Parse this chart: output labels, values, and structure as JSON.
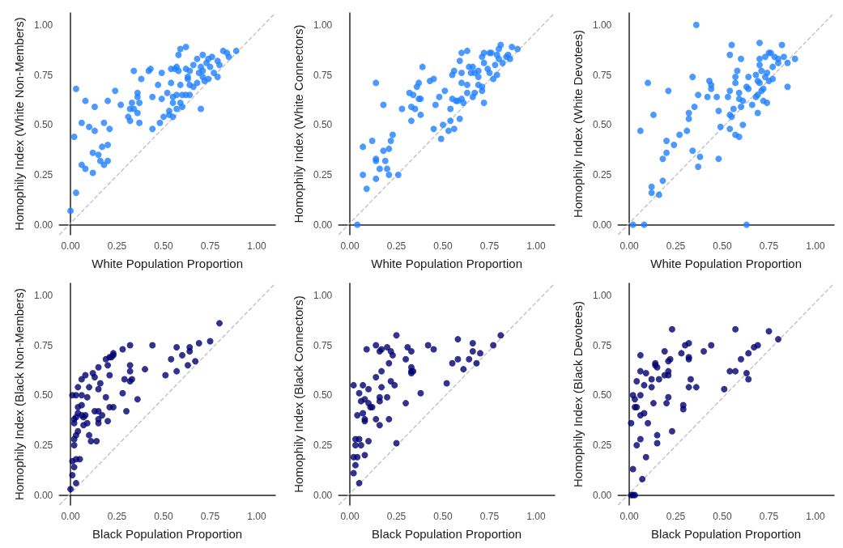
{
  "chart_data": [
    {
      "type": "scatter",
      "xlabel": "White Population Proportion",
      "ylabel": "Homophily Index (White Non-Members)",
      "grid": false,
      "xlim": [
        -0.06,
        1.1
      ],
      "ylim": [
        -0.05,
        1.06
      ],
      "xticks": [
        {
          "value": 0,
          "label": "0.00"
        },
        {
          "value": 0.25,
          "label": "0.25"
        },
        {
          "value": 0.5,
          "label": "0.50"
        },
        {
          "value": 0.75,
          "label": "0.75"
        },
        {
          "value": 1,
          "label": "1.00"
        }
      ],
      "yticks": [
        {
          "value": 0,
          "label": "0.00"
        },
        {
          "value": 0.25,
          "label": "0.25"
        },
        {
          "value": 0.5,
          "label": "0.50"
        },
        {
          "value": 0.75,
          "label": "0.75"
        },
        {
          "value": 1,
          "label": "1.00"
        }
      ],
      "series": [
        {
          "color": "#1f7fff",
          "marker": "circle",
          "x": [
            0.0,
            0.03,
            0.02,
            0.03,
            0.06,
            0.08,
            0.06,
            0.08,
            0.1,
            0.13,
            0.12,
            0.12,
            0.15,
            0.17,
            0.16,
            0.18,
            0.2,
            0.2,
            0.18,
            0.21,
            0.2,
            0.13,
            0.24,
            0.27,
            0.31,
            0.32,
            0.32,
            0.34,
            0.36,
            0.33,
            0.37,
            0.36,
            0.36,
            0.37,
            0.34,
            0.38,
            0.42,
            0.43,
            0.44,
            0.44,
            0.47,
            0.49,
            0.48,
            0.5,
            0.49,
            0.52,
            0.53,
            0.53,
            0.55,
            0.55,
            0.54,
            0.54,
            0.56,
            0.57,
            0.58,
            0.58,
            0.59,
            0.62,
            0.55,
            0.57,
            0.59,
            0.59,
            0.57,
            0.6,
            0.6,
            0.62,
            0.64,
            0.62,
            0.64,
            0.63,
            0.63,
            0.64,
            0.66,
            0.66,
            0.68,
            0.68,
            0.71,
            0.69,
            0.7,
            0.7,
            0.71,
            0.72,
            0.74,
            0.74,
            0.76,
            0.75,
            0.77,
            0.79,
            0.79,
            0.8,
            0.82,
            0.84,
            0.85,
            0.89,
            0.71,
            0.73
          ],
          "values": [
            0.07,
            0.16,
            0.44,
            0.68,
            0.3,
            0.28,
            0.51,
            0.62,
            0.49,
            0.47,
            0.36,
            0.26,
            0.35,
            0.39,
            0.32,
            0.3,
            0.32,
            0.4,
            0.51,
            0.48,
            0.62,
            0.59,
            0.67,
            0.6,
            0.54,
            0.52,
            0.58,
            0.58,
            0.56,
            0.61,
            0.61,
            0.64,
            0.66,
            0.51,
            0.77,
            0.73,
            0.77,
            0.78,
            0.48,
            0.64,
            0.7,
            0.63,
            0.51,
            0.54,
            0.76,
            0.66,
            0.57,
            0.55,
            0.54,
            0.61,
            0.71,
            0.78,
            0.78,
            0.79,
            0.77,
            0.85,
            0.88,
            0.89,
            0.64,
            0.65,
            0.7,
            0.61,
            0.58,
            0.59,
            0.65,
            0.65,
            0.65,
            0.78,
            0.77,
            0.73,
            0.74,
            0.7,
            0.69,
            0.8,
            0.71,
            0.83,
            0.85,
            0.76,
            0.79,
            0.58,
            0.74,
            0.72,
            0.73,
            0.83,
            0.84,
            0.79,
            0.76,
            0.74,
            0.82,
            0.8,
            0.87,
            0.86,
            0.84,
            0.87,
            0.77,
            0.81
          ]
        },
        {
          "type": "line",
          "line_style": "dashed",
          "color": "#bebebe",
          "x": [
            -0.06,
            1.1
          ],
          "values": [
            -0.05,
            1.06
          ]
        }
      ]
    },
    {
      "type": "scatter",
      "xlabel": "White Population Proportion",
      "ylabel": "Homophily Index (White Connectors)",
      "grid": false,
      "xlim": [
        -0.06,
        1.1
      ],
      "ylim": [
        -0.05,
        1.06
      ],
      "xticks": [
        {
          "value": 0,
          "label": "0.00"
        },
        {
          "value": 0.25,
          "label": "0.25"
        },
        {
          "value": 0.5,
          "label": "0.50"
        },
        {
          "value": 0.75,
          "label": "0.75"
        },
        {
          "value": 1,
          "label": "1.00"
        }
      ],
      "yticks": [
        {
          "value": 0,
          "label": "0.00"
        },
        {
          "value": 0.25,
          "label": "0.25"
        },
        {
          "value": 0.5,
          "label": "0.50"
        },
        {
          "value": 0.75,
          "label": "0.75"
        },
        {
          "value": 1,
          "label": "1.00"
        }
      ],
      "series": [
        {
          "color": "#1f7fff",
          "marker": "circle",
          "x": [
            0.04,
            0.09,
            0.07,
            0.14,
            0.16,
            0.2,
            0.21,
            0.26,
            0.14,
            0.14,
            0.19,
            0.18,
            0.21,
            0.22,
            0.23,
            0.07,
            0.12,
            0.14,
            0.18,
            0.28,
            0.33,
            0.38,
            0.33,
            0.35,
            0.32,
            0.34,
            0.37,
            0.38,
            0.36,
            0.37,
            0.39,
            0.43,
            0.45,
            0.46,
            0.48,
            0.51,
            0.45,
            0.49,
            0.5,
            0.53,
            0.54,
            0.56,
            0.59,
            0.54,
            0.55,
            0.57,
            0.58,
            0.6,
            0.61,
            0.55,
            0.56,
            0.59,
            0.6,
            0.63,
            0.6,
            0.6,
            0.63,
            0.63,
            0.66,
            0.67,
            0.64,
            0.66,
            0.65,
            0.67,
            0.69,
            0.69,
            0.69,
            0.71,
            0.71,
            0.72,
            0.71,
            0.72,
            0.72,
            0.74,
            0.75,
            0.75,
            0.76,
            0.77,
            0.78,
            0.79,
            0.8,
            0.79,
            0.8,
            0.81,
            0.82,
            0.84,
            0.85,
            0.86,
            0.87,
            0.9
          ],
          "values": [
            0.0,
            0.18,
            0.25,
            0.23,
            0.28,
            0.28,
            0.25,
            0.25,
            0.33,
            0.32,
            0.32,
            0.37,
            0.38,
            0.42,
            0.45,
            0.39,
            0.42,
            0.71,
            0.6,
            0.58,
            0.52,
            0.55,
            0.59,
            0.58,
            0.66,
            0.65,
            0.63,
            0.63,
            0.69,
            0.71,
            0.79,
            0.72,
            0.73,
            0.6,
            0.64,
            0.67,
            0.48,
            0.43,
            0.5,
            0.47,
            0.52,
            0.48,
            0.53,
            0.58,
            0.63,
            0.62,
            0.62,
            0.63,
            0.61,
            0.75,
            0.77,
            0.82,
            0.86,
            0.87,
            0.76,
            0.71,
            0.7,
            0.66,
            0.64,
            0.66,
            0.79,
            0.79,
            0.76,
            0.76,
            0.77,
            0.74,
            0.7,
            0.69,
            0.67,
            0.61,
            0.84,
            0.86,
            0.81,
            0.78,
            0.76,
            0.86,
            0.86,
            0.73,
            0.8,
            0.85,
            0.83,
            0.75,
            0.88,
            0.9,
            0.81,
            0.84,
            0.85,
            0.83,
            0.89,
            0.88
          ]
        },
        {
          "type": "line",
          "line_style": "dashed",
          "color": "#bebebe",
          "x": [
            -0.06,
            1.1
          ],
          "values": [
            -0.05,
            1.06
          ]
        }
      ]
    },
    {
      "type": "scatter",
      "xlabel": "White Population Proportion",
      "ylabel": "Homophily Index (White Devotees)",
      "grid": false,
      "xlim": [
        -0.06,
        1.1
      ],
      "ylim": [
        -0.05,
        1.06
      ],
      "xticks": [
        {
          "value": 0,
          "label": "0.00"
        },
        {
          "value": 0.25,
          "label": "0.25"
        },
        {
          "value": 0.5,
          "label": "0.50"
        },
        {
          "value": 0.75,
          "label": "0.75"
        },
        {
          "value": 1,
          "label": "1.00"
        }
      ],
      "yticks": [
        {
          "value": 0,
          "label": "0.00"
        },
        {
          "value": 0.25,
          "label": "0.25"
        },
        {
          "value": 0.5,
          "label": "0.50"
        },
        {
          "value": 0.75,
          "label": "0.75"
        },
        {
          "value": 1,
          "label": "1.00"
        }
      ],
      "series": [
        {
          "color": "#1f7fff",
          "marker": "circle",
          "x": [
            0.02,
            0.08,
            0.63,
            0.36,
            0.06,
            0.1,
            0.13,
            0.21,
            0.12,
            0.12,
            0.16,
            0.18,
            0.18,
            0.2,
            0.2,
            0.24,
            0.27,
            0.31,
            0.32,
            0.32,
            0.35,
            0.34,
            0.37,
            0.34,
            0.38,
            0.37,
            0.42,
            0.43,
            0.44,
            0.44,
            0.47,
            0.48,
            0.48,
            0.49,
            0.53,
            0.54,
            0.54,
            0.55,
            0.54,
            0.57,
            0.59,
            0.56,
            0.59,
            0.59,
            0.6,
            0.61,
            0.61,
            0.57,
            0.57,
            0.58,
            0.54,
            0.55,
            0.6,
            0.63,
            0.64,
            0.64,
            0.66,
            0.68,
            0.68,
            0.69,
            0.69,
            0.69,
            0.7,
            0.7,
            0.7,
            0.7,
            0.71,
            0.71,
            0.72,
            0.74,
            0.72,
            0.73,
            0.74,
            0.73,
            0.75,
            0.76,
            0.75,
            0.77,
            0.77,
            0.78,
            0.8,
            0.8,
            0.82,
            0.83,
            0.85,
            0.85,
            0.89
          ],
          "values": [
            0.0,
            0.0,
            0.0,
            1.0,
            0.47,
            0.71,
            0.55,
            0.67,
            0.19,
            0.16,
            0.15,
            0.22,
            0.33,
            0.36,
            0.42,
            0.4,
            0.45,
            0.47,
            0.53,
            0.56,
            0.59,
            0.74,
            0.65,
            0.37,
            0.34,
            0.29,
            0.64,
            0.72,
            0.7,
            0.68,
            0.64,
            0.57,
            0.33,
            0.49,
            0.64,
            0.67,
            0.55,
            0.54,
            0.48,
            0.45,
            0.44,
            0.58,
            0.66,
            0.63,
            0.59,
            0.62,
            0.5,
            0.71,
            0.74,
            0.77,
            0.85,
            0.9,
            0.83,
            0.69,
            0.68,
            0.74,
            0.6,
            0.75,
            0.64,
            0.72,
            0.56,
            0.65,
            0.71,
            0.8,
            0.83,
            0.91,
            0.77,
            0.67,
            0.62,
            0.61,
            0.68,
            0.74,
            0.76,
            0.84,
            0.86,
            0.86,
            0.72,
            0.73,
            0.79,
            0.84,
            0.81,
            0.83,
            0.9,
            0.84,
            0.81,
            0.69,
            0.83
          ]
        },
        {
          "type": "line",
          "line_style": "dashed",
          "color": "#bebebe",
          "x": [
            -0.06,
            1.1
          ],
          "values": [
            -0.05,
            1.06
          ]
        }
      ]
    },
    {
      "type": "scatter",
      "xlabel": "Black Population Proportion",
      "ylabel": "Homophily Index (Black Non-Members)",
      "grid": false,
      "xlim": [
        -0.06,
        1.1
      ],
      "ylim": [
        -0.05,
        1.06
      ],
      "xticks": [
        {
          "value": 0,
          "label": "0.00"
        },
        {
          "value": 0.25,
          "label": "0.25"
        },
        {
          "value": 0.5,
          "label": "0.50"
        },
        {
          "value": 0.75,
          "label": "0.75"
        },
        {
          "value": 1,
          "label": "1.00"
        }
      ],
      "yticks": [
        {
          "value": 0,
          "label": "0.00"
        },
        {
          "value": 0.25,
          "label": "0.25"
        },
        {
          "value": 0.5,
          "label": "0.50"
        },
        {
          "value": 0.75,
          "label": "0.75"
        },
        {
          "value": 1,
          "label": "1.00"
        }
      ],
      "series": [
        {
          "color": "#000070",
          "marker": "circle",
          "x": [
            0.0,
            0.03,
            0.01,
            0.02,
            0.01,
            0.03,
            0.05,
            0.02,
            0.02,
            0.03,
            0.04,
            0.02,
            0.02,
            0.03,
            0.04,
            0.04,
            0.06,
            0.06,
            0.07,
            0.08,
            0.07,
            0.09,
            0.1,
            0.11,
            0.14,
            0.01,
            0.03,
            0.06,
            0.09,
            0.04,
            0.1,
            0.06,
            0.08,
            0.12,
            0.13,
            0.15,
            0.16,
            0.15,
            0.19,
            0.13,
            0.15,
            0.17,
            0.15,
            0.15,
            0.2,
            0.21,
            0.23,
            0.3,
            0.28,
            0.29,
            0.32,
            0.33,
            0.32,
            0.32,
            0.36,
            0.4,
            0.21,
            0.2,
            0.19,
            0.21,
            0.22,
            0.23,
            0.23,
            0.28,
            0.32,
            0.44,
            0.51,
            0.54,
            0.57,
            0.57,
            0.6,
            0.63,
            0.64,
            0.64,
            0.67,
            0.69,
            0.75,
            0.8
          ],
          "values": [
            0.03,
            0.06,
            0.1,
            0.14,
            0.17,
            0.18,
            0.18,
            0.25,
            0.28,
            0.3,
            0.32,
            0.36,
            0.38,
            0.39,
            0.41,
            0.44,
            0.45,
            0.4,
            0.39,
            0.4,
            0.35,
            0.36,
            0.3,
            0.27,
            0.27,
            0.5,
            0.5,
            0.5,
            0.49,
            0.54,
            0.54,
            0.58,
            0.6,
            0.61,
            0.59,
            0.64,
            0.56,
            0.53,
            0.49,
            0.42,
            0.42,
            0.4,
            0.38,
            0.36,
            0.37,
            0.44,
            0.44,
            0.42,
            0.51,
            0.58,
            0.57,
            0.58,
            0.62,
            0.65,
            0.48,
            0.63,
            0.6,
            0.65,
            0.68,
            0.69,
            0.69,
            0.7,
            0.71,
            0.73,
            0.75,
            0.75,
            0.6,
            0.68,
            0.62,
            0.74,
            0.7,
            0.65,
            0.74,
            0.72,
            0.67,
            0.76,
            0.77,
            0.86
          ]
        },
        {
          "type": "line",
          "line_style": "dashed",
          "color": "#bebebe",
          "x": [
            -0.06,
            1.1
          ],
          "values": [
            -0.05,
            1.06
          ]
        }
      ]
    },
    {
      "type": "scatter",
      "xlabel": "Black Population Proportion",
      "ylabel": "Homophily Index (Black Connectors)",
      "grid": false,
      "xlim": [
        -0.06,
        1.1
      ],
      "ylim": [
        -0.05,
        1.06
      ],
      "xticks": [
        {
          "value": 0,
          "label": "0.00"
        },
        {
          "value": 0.25,
          "label": "0.25"
        },
        {
          "value": 0.5,
          "label": "0.50"
        },
        {
          "value": 0.75,
          "label": "0.75"
        },
        {
          "value": 1,
          "label": "1.00"
        }
      ],
      "yticks": [
        {
          "value": 0,
          "label": "0.00"
        },
        {
          "value": 0.25,
          "label": "0.25"
        },
        {
          "value": 0.5,
          "label": "0.50"
        },
        {
          "value": 0.75,
          "label": "0.75"
        },
        {
          "value": 1,
          "label": "1.00"
        }
      ],
      "series": [
        {
          "color": "#000070",
          "marker": "circle",
          "x": [
            0.05,
            0.02,
            0.03,
            0.02,
            0.04,
            0.08,
            0.03,
            0.05,
            0.03,
            0.06,
            0.1,
            0.25,
            0.04,
            0.07,
            0.08,
            0.08,
            0.14,
            0.16,
            0.21,
            0.06,
            0.08,
            0.1,
            0.11,
            0.12,
            0.05,
            0.02,
            0.07,
            0.1,
            0.16,
            0.16,
            0.2,
            0.17,
            0.14,
            0.17,
            0.22,
            0.24,
            0.21,
            0.09,
            0.14,
            0.16,
            0.17,
            0.2,
            0.22,
            0.23,
            0.25,
            0.3,
            0.31,
            0.33,
            0.3,
            0.33,
            0.33,
            0.34,
            0.33,
            0.38,
            0.42,
            0.45,
            0.52,
            0.55,
            0.58,
            0.58,
            0.61,
            0.64,
            0.66,
            0.66,
            0.68,
            0.7,
            0.77,
            0.81
          ],
          "values": [
            0.06,
            0.11,
            0.15,
            0.19,
            0.19,
            0.2,
            0.28,
            0.28,
            0.25,
            0.25,
            0.27,
            0.26,
            0.4,
            0.41,
            0.38,
            0.37,
            0.38,
            0.35,
            0.38,
            0.47,
            0.48,
            0.46,
            0.44,
            0.44,
            0.51,
            0.55,
            0.55,
            0.53,
            0.49,
            0.47,
            0.49,
            0.54,
            0.59,
            0.62,
            0.57,
            0.55,
            0.66,
            0.73,
            0.75,
            0.72,
            0.73,
            0.74,
            0.72,
            0.7,
            0.8,
            0.68,
            0.74,
            0.72,
            0.46,
            0.64,
            0.62,
            0.62,
            0.61,
            0.51,
            0.75,
            0.73,
            0.56,
            0.66,
            0.78,
            0.68,
            0.63,
            0.68,
            0.76,
            0.72,
            0.66,
            0.71,
            0.75,
            0.8
          ]
        },
        {
          "type": "line",
          "line_style": "dashed",
          "color": "#bebebe",
          "x": [
            -0.06,
            1.1
          ],
          "values": [
            -0.05,
            1.06
          ]
        }
      ]
    },
    {
      "type": "scatter",
      "xlabel": "Black Population Proportion",
      "ylabel": "Homophily Index (Black Devotees)",
      "grid": false,
      "xlim": [
        -0.06,
        1.1
      ],
      "ylim": [
        -0.05,
        1.06
      ],
      "xticks": [
        {
          "value": 0,
          "label": "0.00"
        },
        {
          "value": 0.25,
          "label": "0.25"
        },
        {
          "value": 0.5,
          "label": "0.50"
        },
        {
          "value": 0.75,
          "label": "0.75"
        },
        {
          "value": 1,
          "label": "1.00"
        }
      ],
      "yticks": [
        {
          "value": 0,
          "label": "0.00"
        },
        {
          "value": 0.25,
          "label": "0.25"
        },
        {
          "value": 0.5,
          "label": "0.50"
        },
        {
          "value": 0.75,
          "label": "0.75"
        },
        {
          "value": 1,
          "label": "1.00"
        }
      ],
      "series": [
        {
          "color": "#000070",
          "marker": "circle",
          "x": [
            0.01,
            0.02,
            0.03,
            0.07,
            0.02,
            0.09,
            0.04,
            0.06,
            0.15,
            0.15,
            0.23,
            0.01,
            0.1,
            0.06,
            0.08,
            0.03,
            0.04,
            0.13,
            0.2,
            0.21,
            0.29,
            0.29,
            0.02,
            0.03,
            0.06,
            0.08,
            0.04,
            0.12,
            0.12,
            0.16,
            0.06,
            0.09,
            0.19,
            0.21,
            0.21,
            0.15,
            0.14,
            0.14,
            0.21,
            0.22,
            0.06,
            0.19,
            0.23,
            0.28,
            0.3,
            0.32,
            0.32,
            0.32,
            0.33,
            0.32,
            0.36,
            0.4,
            0.44,
            0.51,
            0.54,
            0.57,
            0.57,
            0.6,
            0.63,
            0.64,
            0.64,
            0.67,
            0.69,
            0.75,
            0.8
          ],
          "values": [
            0.0,
            0.0,
            0.0,
            0.08,
            0.13,
            0.19,
            0.25,
            0.28,
            0.26,
            0.3,
            0.32,
            0.36,
            0.36,
            0.4,
            0.41,
            0.44,
            0.44,
            0.46,
            0.46,
            0.49,
            0.43,
            0.45,
            0.5,
            0.48,
            0.5,
            0.55,
            0.57,
            0.54,
            0.58,
            0.58,
            0.62,
            0.61,
            0.6,
            0.6,
            0.62,
            0.64,
            0.65,
            0.66,
            0.67,
            0.68,
            0.7,
            0.72,
            0.83,
            0.71,
            0.75,
            0.76,
            0.69,
            0.68,
            0.58,
            0.54,
            0.54,
            0.72,
            0.75,
            0.53,
            0.62,
            0.62,
            0.83,
            0.68,
            0.61,
            0.58,
            0.71,
            0.74,
            0.75,
            0.82,
            0.78
          ]
        },
        {
          "type": "line",
          "line_style": "dashed",
          "color": "#bebebe",
          "x": [
            -0.06,
            1.1
          ],
          "values": [
            -0.05,
            1.06
          ]
        }
      ]
    }
  ]
}
